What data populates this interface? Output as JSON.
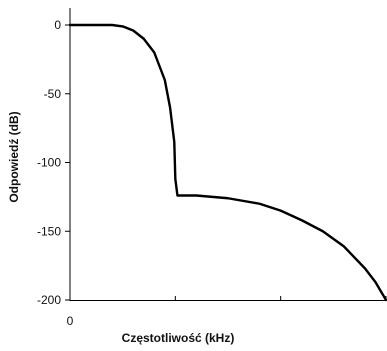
{
  "chart_data": {
    "type": "line",
    "title": "",
    "xlabel": "Częstotliwość (kHz)",
    "ylabel": "Odpowiedź (dB)",
    "ylim": [
      -200,
      10
    ],
    "xlim": [
      0,
      3
    ],
    "grid": false,
    "y_ticks": [
      {
        "value": 0,
        "label": "0"
      },
      {
        "value": -50,
        "label": "-50"
      },
      {
        "value": -100,
        "label": "-100"
      },
      {
        "value": -150,
        "label": "-150"
      },
      {
        "value": -200,
        "label": "-200"
      }
    ],
    "x_ticks": [
      {
        "value": 0,
        "label": "0"
      },
      {
        "value": 1,
        "label": ""
      },
      {
        "value": 2,
        "label": ""
      },
      {
        "value": 3,
        "label": ""
      }
    ],
    "series": [
      {
        "x": [
          0,
          0.2,
          0.4,
          0.5,
          0.6,
          0.7,
          0.8,
          0.9,
          0.95,
          0.99,
          1.0,
          1.02,
          1.2,
          1.5,
          1.8,
          2.0,
          2.2,
          2.4,
          2.6,
          2.8,
          2.9,
          3.0
        ],
        "y": [
          0,
          0,
          0,
          -1,
          -4,
          -10,
          -20,
          -40,
          -60,
          -85,
          -112,
          -124,
          -124,
          -126,
          -130,
          -135,
          -142,
          -150,
          -161,
          -177,
          -187,
          -200
        ]
      }
    ]
  }
}
